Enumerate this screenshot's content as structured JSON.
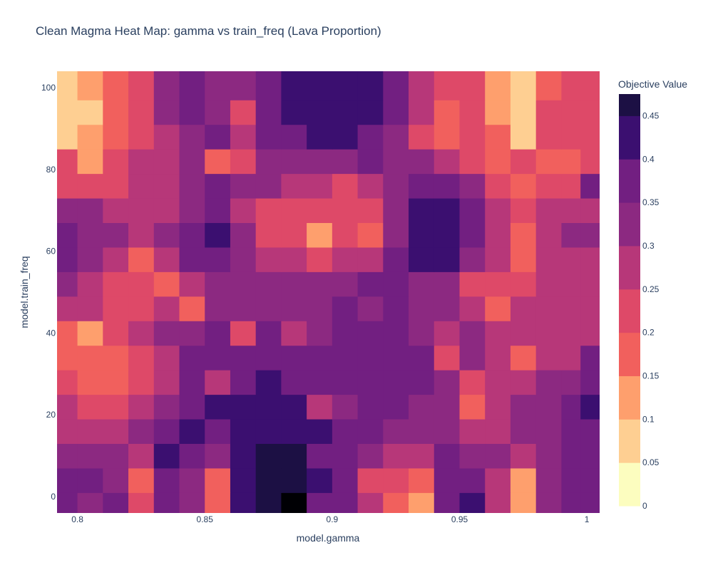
{
  "chart_data": {
    "type": "heatmap",
    "title": "Clean Magma Heat Map: gamma vs train_freq (Lava Proportion)",
    "xlabel": "model.gamma",
    "ylabel": "model.train_freq",
    "colorbar_title": "Objective Value",
    "colorscale": "magma_r",
    "contour_levels": [
      0,
      0.05,
      0.1,
      0.15,
      0.2,
      0.25,
      0.3,
      0.35,
      0.4,
      0.45
    ],
    "colorbar_colors": [
      "#fcfdbf",
      "#fecf92",
      "#fe9f6d",
      "#f1605d",
      "#de4968",
      "#b73779",
      "#8c2981",
      "#721f81",
      "#3b0f70",
      "#1c1044",
      "#000004"
    ],
    "xlim": [
      0.792,
      1.005
    ],
    "ylim": [
      -4,
      104
    ],
    "x_ticks": [
      0.8,
      0.85,
      0.9,
      0.95,
      1
    ],
    "x_tick_labels": [
      "0.8",
      "0.85",
      "0.9",
      "0.95",
      "1"
    ],
    "y_ticks": [
      0,
      20,
      40,
      60,
      80,
      100
    ],
    "y_tick_labels": [
      "0",
      "20",
      "40",
      "60",
      "80",
      "100"
    ],
    "colorbar_tick_labels": [
      "0",
      "0.05",
      "0.1",
      "0.15",
      "0.2",
      "0.25",
      "0.3",
      "0.35",
      "0.4",
      "0.45"
    ],
    "x": [
      0.795,
      0.805,
      0.815,
      0.825,
      0.835,
      0.845,
      0.855,
      0.865,
      0.875,
      0.885,
      0.895,
      0.905,
      0.915,
      0.925,
      0.935,
      0.945,
      0.955,
      0.965,
      0.975,
      0.985,
      0.995,
      1.0
    ],
    "y": [
      -2,
      4,
      10,
      16,
      22,
      28,
      34,
      40,
      46,
      52,
      58,
      64,
      70,
      76,
      82,
      88,
      94,
      100
    ],
    "z": [
      [
        0.33,
        0.29,
        0.3,
        0.19,
        0.3,
        0.27,
        0.12,
        0.38,
        0.44,
        0.45,
        0.33,
        0.3,
        0.21,
        0.14,
        0.08,
        0.3,
        0.36,
        0.22,
        0.06,
        0.26,
        0.31,
        0.32
      ],
      [
        0.34,
        0.3,
        0.28,
        0.12,
        0.31,
        0.28,
        0.1,
        0.37,
        0.43,
        0.43,
        0.35,
        0.31,
        0.19,
        0.17,
        0.12,
        0.31,
        0.34,
        0.23,
        0.09,
        0.27,
        0.33,
        0.34
      ],
      [
        0.27,
        0.25,
        0.27,
        0.23,
        0.35,
        0.3,
        0.25,
        0.36,
        0.42,
        0.41,
        0.33,
        0.3,
        0.26,
        0.24,
        0.21,
        0.3,
        0.29,
        0.26,
        0.21,
        0.28,
        0.33,
        0.33
      ],
      [
        0.24,
        0.22,
        0.24,
        0.25,
        0.33,
        0.35,
        0.33,
        0.36,
        0.39,
        0.38,
        0.35,
        0.31,
        0.3,
        0.29,
        0.26,
        0.27,
        0.21,
        0.23,
        0.26,
        0.29,
        0.31,
        0.33
      ],
      [
        0.2,
        0.18,
        0.19,
        0.2,
        0.28,
        0.34,
        0.35,
        0.35,
        0.36,
        0.36,
        0.24,
        0.28,
        0.3,
        0.31,
        0.29,
        0.25,
        0.12,
        0.22,
        0.25,
        0.28,
        0.3,
        0.36
      ],
      [
        0.16,
        0.14,
        0.12,
        0.16,
        0.24,
        0.33,
        0.24,
        0.34,
        0.35,
        0.34,
        0.32,
        0.3,
        0.31,
        0.32,
        0.3,
        0.26,
        0.18,
        0.23,
        0.24,
        0.27,
        0.29,
        0.34
      ],
      [
        0.13,
        0.1,
        0.14,
        0.18,
        0.24,
        0.31,
        0.32,
        0.33,
        0.33,
        0.31,
        0.31,
        0.3,
        0.31,
        0.32,
        0.3,
        0.15,
        0.25,
        0.23,
        0.13,
        0.2,
        0.22,
        0.3
      ],
      [
        0.14,
        0.09,
        0.16,
        0.2,
        0.25,
        0.28,
        0.3,
        0.19,
        0.3,
        0.2,
        0.29,
        0.3,
        0.3,
        0.31,
        0.29,
        0.22,
        0.26,
        0.22,
        0.21,
        0.23,
        0.2,
        0.22
      ],
      [
        0.22,
        0.2,
        0.18,
        0.19,
        0.2,
        0.12,
        0.27,
        0.28,
        0.28,
        0.29,
        0.29,
        0.3,
        0.29,
        0.3,
        0.28,
        0.27,
        0.22,
        0.12,
        0.21,
        0.24,
        0.23,
        0.21
      ],
      [
        0.25,
        0.22,
        0.19,
        0.16,
        0.1,
        0.21,
        0.28,
        0.28,
        0.28,
        0.28,
        0.28,
        0.29,
        0.3,
        0.31,
        0.29,
        0.28,
        0.19,
        0.16,
        0.17,
        0.22,
        0.22,
        0.21
      ],
      [
        0.3,
        0.26,
        0.22,
        0.12,
        0.24,
        0.33,
        0.32,
        0.27,
        0.24,
        0.2,
        0.18,
        0.2,
        0.24,
        0.3,
        0.35,
        0.36,
        0.27,
        0.2,
        0.13,
        0.22,
        0.24,
        0.24
      ],
      [
        0.31,
        0.29,
        0.25,
        0.22,
        0.26,
        0.33,
        0.35,
        0.27,
        0.16,
        0.16,
        0.06,
        0.15,
        0.14,
        0.28,
        0.35,
        0.36,
        0.3,
        0.22,
        0.14,
        0.24,
        0.26,
        0.26
      ],
      [
        0.27,
        0.26,
        0.24,
        0.22,
        0.24,
        0.29,
        0.33,
        0.24,
        0.16,
        0.17,
        0.15,
        0.16,
        0.18,
        0.28,
        0.35,
        0.35,
        0.31,
        0.24,
        0.18,
        0.21,
        0.22,
        0.23
      ],
      [
        0.18,
        0.17,
        0.19,
        0.22,
        0.24,
        0.27,
        0.3,
        0.28,
        0.26,
        0.22,
        0.2,
        0.17,
        0.23,
        0.27,
        0.31,
        0.31,
        0.28,
        0.15,
        0.12,
        0.16,
        0.18,
        0.33
      ],
      [
        0.15,
        0.08,
        0.15,
        0.21,
        0.24,
        0.27,
        0.13,
        0.19,
        0.25,
        0.28,
        0.28,
        0.29,
        0.33,
        0.29,
        0.26,
        0.22,
        0.18,
        0.14,
        0.17,
        0.14,
        0.1,
        0.18
      ],
      [
        0.02,
        0.06,
        0.14,
        0.19,
        0.24,
        0.28,
        0.3,
        0.24,
        0.3,
        0.34,
        0.36,
        0.36,
        0.34,
        0.29,
        0.19,
        0.1,
        0.16,
        0.1,
        0.02,
        0.17,
        0.16,
        0.19
      ],
      [
        0.02,
        0.04,
        0.12,
        0.16,
        0.26,
        0.31,
        0.29,
        0.18,
        0.3,
        0.36,
        0.38,
        0.38,
        0.36,
        0.3,
        0.22,
        0.14,
        0.18,
        0.06,
        0.02,
        0.18,
        0.17,
        0.18
      ],
      [
        0.03,
        0.06,
        0.12,
        0.18,
        0.25,
        0.3,
        0.29,
        0.28,
        0.31,
        0.35,
        0.37,
        0.37,
        0.35,
        0.32,
        0.24,
        0.16,
        0.19,
        0.06,
        0.02,
        0.14,
        0.17,
        0.18
      ]
    ]
  }
}
